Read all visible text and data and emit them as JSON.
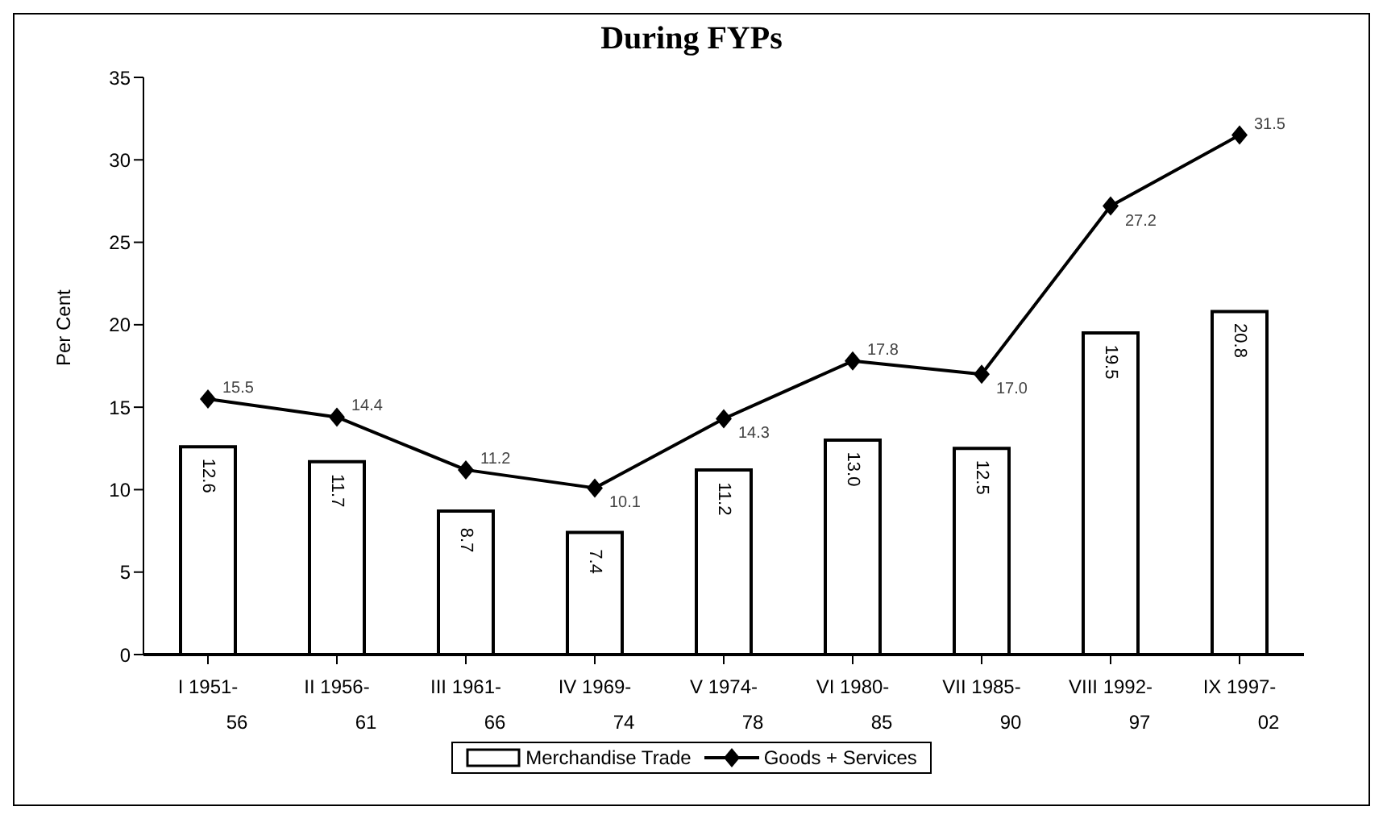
{
  "chart_data": {
    "type": "bar",
    "title": "During FYPs",
    "ylabel": "Per Cent",
    "categories": [
      "I 1951-56",
      "II 1956-61",
      "III 1961-66",
      "IV 1969-74",
      "V 1974-78",
      "VI 1980-85",
      "VII 1985-90",
      "VIII 1992-97",
      "IX 1997-02"
    ],
    "series": [
      {
        "name": "Merchandise Trade",
        "color": "#ffffff",
        "values": [
          12.6,
          11.7,
          8.7,
          7.4,
          11.2,
          13.0,
          12.5,
          19.5,
          20.8
        ],
        "value_labels": [
          "12.6",
          "11.7",
          "8.7",
          "7.4",
          "11.2",
          "13.0",
          "12.5",
          "19.5",
          "20.8"
        ]
      },
      {
        "name": "Goods + Services",
        "type": "line",
        "color": "#000000",
        "marker": "diamond",
        "values": [
          15.5,
          14.4,
          11.2,
          10.1,
          14.3,
          17.8,
          17.0,
          27.2,
          31.5
        ],
        "value_labels": [
          "15.5",
          "14.4",
          "11.2",
          "10.1",
          "14.3",
          "17.8",
          "17.0",
          "27.2",
          "31.5"
        ]
      }
    ],
    "ylim": [
      0,
      35
    ],
    "yticks": [
      0,
      5,
      10,
      15,
      20,
      25,
      30,
      35
    ],
    "legend": "bottom"
  }
}
